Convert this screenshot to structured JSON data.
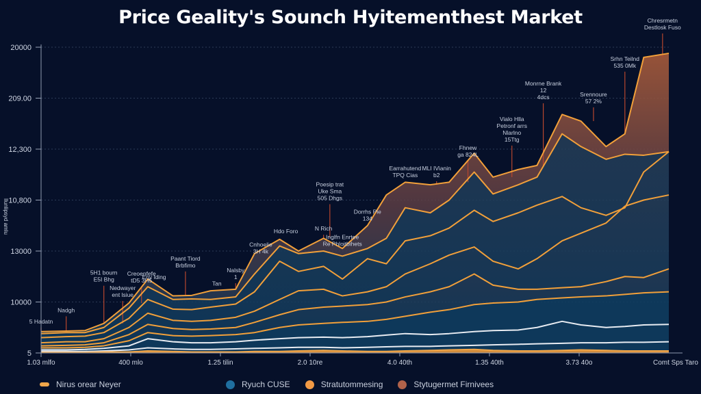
{
  "chart_data": {
    "type": "area",
    "title": "Price Geality's Sounch Hyitementhest Market",
    "xlabel": "",
    "ylabel": "Ilunlipsyd amlu",
    "x_ticks": [
      "1.03 mlfo",
      "400 mlo",
      "1.25 tilin",
      "2.0 10re",
      "4.0 40th",
      "1.35 40th",
      "3.73 40o",
      "Comt Sps Taro"
    ],
    "y_ticks": [
      "5",
      "10000",
      "13000",
      "10,800",
      "12,300",
      "209.00",
      "20000"
    ],
    "y_scale_note": "y values below are expressed in tick-index units (0 = '5' tick, 6 = '20000' tick) because tick labels are non-monotonic",
    "ylim": [
      0,
      6
    ],
    "xlim": [
      0,
      100
    ],
    "grid": true,
    "legend_position": "bottom",
    "legend": [
      {
        "name": "Nirus orear Neyer",
        "marker": "dash",
        "color": "#f0a64a"
      },
      {
        "name": "Ryuch CUSE",
        "marker": "dot",
        "color": "#1f6fa0"
      },
      {
        "name": "Stratutommesing",
        "marker": "dot",
        "color": "#f29a45"
      },
      {
        "name": "Stytugermet Firnivees",
        "marker": "dot",
        "color": "#b0624a"
      }
    ],
    "x": [
      0,
      4,
      7,
      10,
      14,
      17,
      21,
      24,
      27,
      31,
      34,
      38,
      41,
      45,
      48,
      52,
      55,
      58,
      62,
      65,
      69,
      72,
      76,
      79,
      83,
      86,
      90,
      93,
      96,
      100
    ],
    "series": [
      {
        "name": "Stytugermet Firnivees (top envelope)",
        "color": "#f2a03a",
        "fill": "#a3593a",
        "values": [
          0.42,
          0.43,
          0.44,
          0.58,
          0.98,
          1.45,
          1.12,
          1.13,
          1.22,
          1.25,
          1.95,
          2.23,
          2.0,
          2.25,
          2.05,
          2.5,
          3.1,
          3.35,
          3.3,
          3.35,
          3.92,
          3.45,
          3.6,
          3.68,
          4.68,
          4.55,
          4.05,
          4.3,
          5.8,
          5.88
        ]
      },
      {
        "name": "Stratutommesing band 1",
        "color": "#f2a03a",
        "values": [
          0.38,
          0.4,
          0.4,
          0.5,
          0.88,
          1.3,
          1.05,
          1.06,
          1.05,
          1.1,
          1.55,
          2.1,
          1.95,
          2.0,
          1.9,
          2.05,
          2.25,
          2.85,
          2.75,
          3.0,
          3.55,
          3.12,
          3.3,
          3.45,
          4.3,
          4.05,
          3.8,
          3.9,
          3.88,
          3.95
        ]
      },
      {
        "name": "Stratutommesing band 2",
        "color": "#f2a03a",
        "values": [
          0.3,
          0.32,
          0.33,
          0.4,
          0.68,
          1.05,
          0.86,
          0.85,
          0.9,
          0.96,
          1.2,
          1.8,
          1.6,
          1.7,
          1.45,
          1.85,
          1.75,
          2.2,
          2.3,
          2.45,
          2.8,
          2.58,
          2.75,
          2.9,
          3.07,
          2.85,
          2.7,
          2.85,
          3.55,
          3.95
        ]
      },
      {
        "name": "Stratutommesing band 3",
        "color": "#f2a03a",
        "values": [
          0.2,
          0.22,
          0.22,
          0.28,
          0.5,
          0.78,
          0.64,
          0.62,
          0.64,
          0.7,
          0.82,
          1.05,
          1.22,
          1.25,
          1.12,
          1.2,
          1.3,
          1.55,
          1.75,
          1.92,
          2.08,
          1.8,
          1.65,
          1.85,
          2.2,
          2.35,
          2.55,
          2.88,
          3.0,
          3.1
        ]
      },
      {
        "name": "Stratutommesing band 4",
        "color": "#f2a03a",
        "values": [
          0.14,
          0.15,
          0.16,
          0.2,
          0.36,
          0.56,
          0.48,
          0.46,
          0.47,
          0.5,
          0.6,
          0.75,
          0.85,
          0.9,
          0.92,
          0.95,
          1.0,
          1.1,
          1.2,
          1.3,
          1.55,
          1.33,
          1.25,
          1.25,
          1.28,
          1.3,
          1.4,
          1.5,
          1.48,
          1.65
        ]
      },
      {
        "name": "Stratutommesing band 5",
        "color": "#f2a03a",
        "values": [
          0.1,
          0.1,
          0.11,
          0.14,
          0.24,
          0.4,
          0.34,
          0.33,
          0.34,
          0.36,
          0.4,
          0.5,
          0.55,
          0.58,
          0.6,
          0.62,
          0.66,
          0.72,
          0.8,
          0.85,
          0.95,
          0.98,
          1.0,
          1.05,
          1.08,
          1.1,
          1.12,
          1.15,
          1.18,
          1.2
        ]
      },
      {
        "name": "Ryuch CUSE (white line 1)",
        "color": "#e8ecf2",
        "values": [
          0.06,
          0.06,
          0.07,
          0.09,
          0.14,
          0.28,
          0.22,
          0.2,
          0.2,
          0.22,
          0.25,
          0.28,
          0.3,
          0.31,
          0.3,
          0.32,
          0.35,
          0.38,
          0.36,
          0.38,
          0.42,
          0.44,
          0.45,
          0.5,
          0.62,
          0.55,
          0.5,
          0.52,
          0.55,
          0.56
        ]
      },
      {
        "name": "Ryuch CUSE (white line 2)",
        "color": "#e8ecf2",
        "values": [
          0.03,
          0.03,
          0.03,
          0.04,
          0.06,
          0.1,
          0.08,
          0.07,
          0.07,
          0.08,
          0.09,
          0.1,
          0.11,
          0.11,
          0.1,
          0.11,
          0.12,
          0.13,
          0.13,
          0.14,
          0.15,
          0.16,
          0.17,
          0.18,
          0.19,
          0.2,
          0.2,
          0.21,
          0.21,
          0.22
        ]
      },
      {
        "name": "Nirus orear Neyer (base)",
        "color": "#f0a64a",
        "values": [
          0.01,
          0.01,
          0.01,
          0.02,
          0.02,
          0.04,
          0.03,
          0.02,
          0.02,
          0.02,
          0.03,
          0.03,
          0.04,
          0.05,
          0.04,
          0.03,
          0.03,
          0.04,
          0.05,
          0.06,
          0.07,
          0.05,
          0.04,
          0.04,
          0.05,
          0.06,
          0.05,
          0.04,
          0.04,
          0.04
        ]
      }
    ],
    "annotations": [
      {
        "x": 0,
        "y": 0.58,
        "text": [
          "5 Hadatn"
        ]
      },
      {
        "x": 4,
        "y": 0.8,
        "text": [
          "Nadgh"
        ]
      },
      {
        "x": 10,
        "y": 1.4,
        "text": [
          "5H1 bourn",
          "E5I Bhg"
        ]
      },
      {
        "x": 13,
        "y": 1.1,
        "text": [
          "Nedwayer",
          "ent lsiue"
        ]
      },
      {
        "x": 16,
        "y": 1.38,
        "text": [
          "Creoenfefe",
          "tD5 3H5"
        ]
      },
      {
        "x": 18,
        "y": 1.45,
        "text": [
          "Eny lding"
        ]
      },
      {
        "x": 23,
        "y": 1.68,
        "text": [
          "Paant Tiord",
          "Brbfimo"
        ]
      },
      {
        "x": 28,
        "y": 1.32,
        "text": [
          "Tan"
        ]
      },
      {
        "x": 31,
        "y": 1.45,
        "text": [
          "Nalsby",
          "1"
        ]
      },
      {
        "x": 35,
        "y": 1.95,
        "text": [
          "Cnhoelie",
          "3H 4k"
        ]
      },
      {
        "x": 39,
        "y": 2.35,
        "text": [
          "Hdo Foro"
        ]
      },
      {
        "x": 45,
        "y": 2.4,
        "text": [
          "N Rich"
        ]
      },
      {
        "x": 48,
        "y": 2.1,
        "text": [
          "Inglfn Enrtee",
          "Re Phloitbihets"
        ]
      },
      {
        "x": 46,
        "y": 3.0,
        "text": [
          "Poesip trat",
          "Uke Sma",
          "505 Dhgs"
        ]
      },
      {
        "x": 52,
        "y": 2.6,
        "text": [
          "Dorrhs Pie",
          "134"
        ]
      },
      {
        "x": 58,
        "y": 3.45,
        "text": [
          "Earrahutend",
          "TPQ Cias"
        ]
      },
      {
        "x": 63,
        "y": 3.45,
        "text": [
          "MLI IVianin",
          "b2"
        ]
      },
      {
        "x": 68,
        "y": 3.85,
        "text": [
          "Fhnew",
          "ga 824L"
        ]
      },
      {
        "x": 75,
        "y": 4.15,
        "text": [
          "Vialo Hlla",
          "Petronf arrs",
          "Nlarlno",
          "15Ttg"
        ]
      },
      {
        "x": 80,
        "y": 4.98,
        "text": [
          "Monrne Brank",
          "12",
          "4dcs"
        ]
      },
      {
        "x": 88,
        "y": 4.9,
        "text": [
          "Srennoure",
          "57 2%"
        ]
      },
      {
        "x": 93,
        "y": 5.6,
        "text": [
          "Srhn Teilnd",
          "535 0Mk"
        ]
      },
      {
        "x": 99,
        "y": 6.35,
        "text": [
          "Chresrmetn",
          "Destlosk Fuso"
        ]
      }
    ]
  }
}
